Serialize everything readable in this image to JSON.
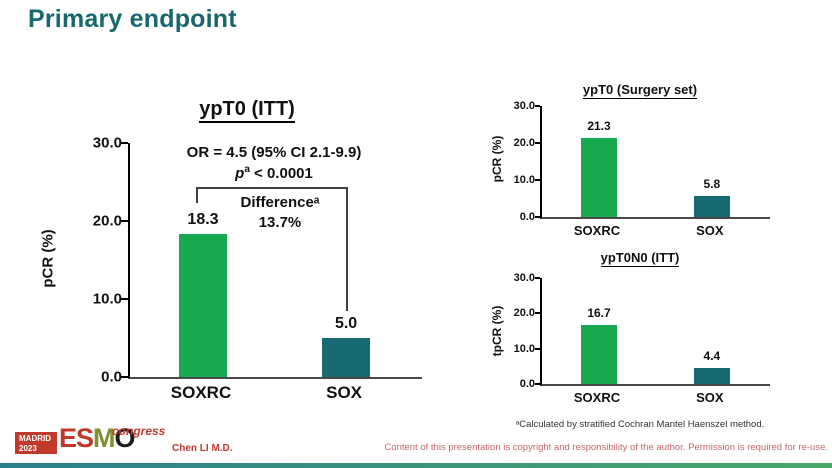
{
  "slide": {
    "title": "Primary endpoint",
    "presenter": "Chen LI M.D.",
    "footnote": "ᵃCalculated by stratified Cochran Mantel Haenszel method.",
    "copyright": "Content of this presentation is copyright and responsibility of the author. Permission is required for re-use."
  },
  "logo": {
    "city": "MADRID",
    "year": "2023",
    "letters": [
      {
        "ch": "E",
        "color": "#c0392b"
      },
      {
        "ch": "S",
        "color": "#c0392b"
      },
      {
        "ch": "M",
        "color": "#7f8f2f"
      },
      {
        "ch": "O",
        "color": "#1b1b1b"
      }
    ],
    "congress": "congress"
  },
  "colors": {
    "heading_teal": "#17686e",
    "bar_green": "#18a84f",
    "bar_teal": "#176a73",
    "logo_red": "#c0392b",
    "footer_red": "#c4666e"
  },
  "chart_data": [
    {
      "type": "bar",
      "title": "ypT0 (ITT)",
      "ylabel": "pCR (%)",
      "categories": [
        "SOXRC",
        "SOX"
      ],
      "values": [
        18.3,
        5.0
      ],
      "value_labels": [
        "18.3",
        "5.0"
      ],
      "ylim": [
        0,
        30
      ],
      "yticks": [
        "30.0",
        "20.0",
        "10.0",
        "0.0"
      ],
      "bar_centers": [
        0.25,
        0.74
      ],
      "grid": false,
      "annotations": {
        "or": "OR = 4.5 (95% CI 2.1-9.9)",
        "p_symbol": "p",
        "p_sup": "a",
        "p_value": " < 0.0001",
        "difference_label": "Differenceᵃ",
        "difference_value": "13.7%"
      }
    },
    {
      "type": "bar",
      "title": "ypT0 (Surgery set)",
      "ylabel": "pCR (%)",
      "categories": [
        "SOXRC",
        "SOX"
      ],
      "values": [
        21.3,
        5.8
      ],
      "value_labels": [
        "21.3",
        "5.8"
      ],
      "ylim": [
        0,
        30
      ],
      "yticks": [
        "30.0",
        "20.0",
        "10.0",
        "0.0"
      ],
      "bar_centers": [
        0.25,
        0.745
      ],
      "grid": false
    },
    {
      "type": "bar",
      "title": "ypT0N0 (ITT)",
      "ylabel": "tpCR (%)",
      "categories": [
        "SOXRC",
        "SOX"
      ],
      "values": [
        16.7,
        4.4
      ],
      "value_labels": [
        "16.7",
        "4.4"
      ],
      "ylim": [
        0,
        30
      ],
      "yticks": [
        "30.0",
        "20.0",
        "10.0",
        "0.0"
      ],
      "bar_centers": [
        0.25,
        0.745
      ],
      "grid": false
    }
  ]
}
